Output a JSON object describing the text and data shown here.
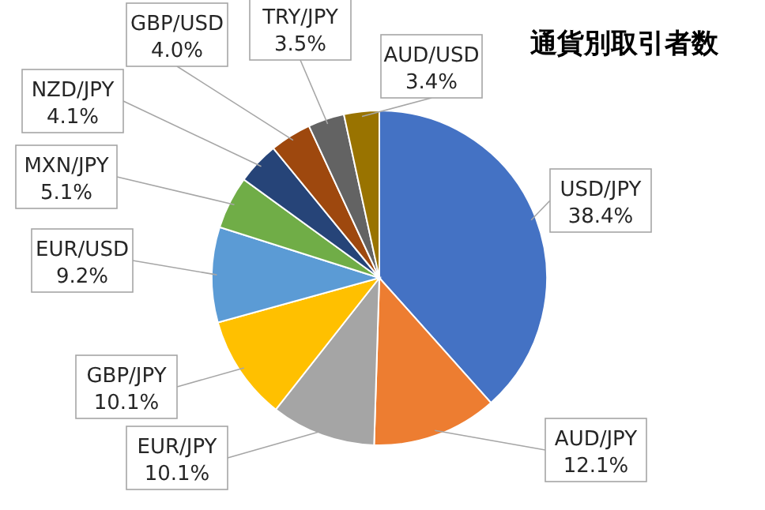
{
  "chart_data": {
    "type": "pie",
    "title": "通貨別取引者数",
    "categories": [
      "USD/JPY",
      "AUD/JPY",
      "EUR/JPY",
      "GBP/JPY",
      "EUR/USD",
      "MXN/JPY",
      "NZD/JPY",
      "GBP/USD",
      "TRY/JPY",
      "AUD/USD"
    ],
    "values": [
      38.4,
      12.1,
      10.1,
      10.1,
      9.2,
      5.1,
      4.1,
      4.0,
      3.5,
      3.4
    ],
    "colors": [
      "#4472c4",
      "#ed7d31",
      "#a5a5a5",
      "#ffc000",
      "#5b9bd5",
      "#70ad47",
      "#264478",
      "#9e480e",
      "#636363",
      "#997300"
    ],
    "value_labels": [
      "38.4%",
      "12.1%",
      "10.1%",
      "10.1%",
      "9.2%",
      "5.1%",
      "4.1%",
      "4.0%",
      "3.5%",
      "3.4%"
    ]
  }
}
